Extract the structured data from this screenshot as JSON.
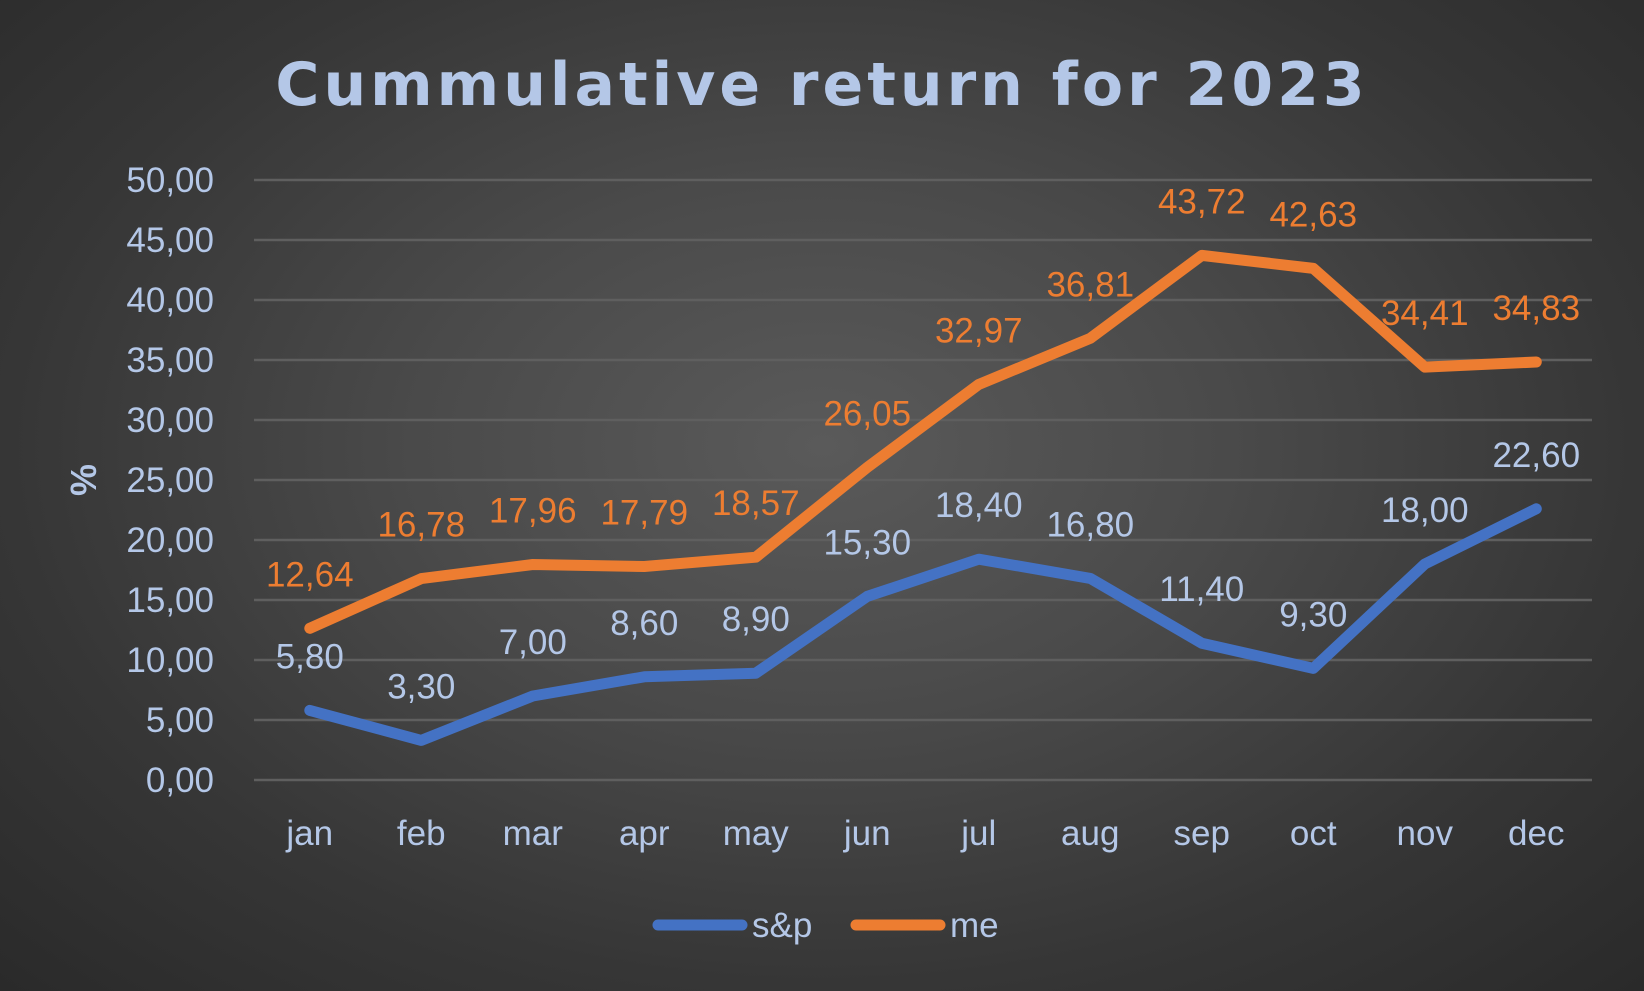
{
  "chart_data": {
    "type": "line",
    "title": "Cummulative return for 2023",
    "xlabel": "",
    "ylabel": "%",
    "categories": [
      "jan",
      "feb",
      "mar",
      "apr",
      "may",
      "jun",
      "jul",
      "aug",
      "sep",
      "oct",
      "nov",
      "dec"
    ],
    "ylim": [
      0,
      50
    ],
    "yticks": [
      "0,00",
      "5,00",
      "10,00",
      "15,00",
      "20,00",
      "25,00",
      "30,00",
      "35,00",
      "40,00",
      "45,00",
      "50,00"
    ],
    "grid": true,
    "legend_position": "bottom",
    "series": [
      {
        "name": "s&p",
        "color": "#4472c4",
        "label_color": "#b4c7e7",
        "values": [
          5.8,
          3.3,
          7.0,
          8.6,
          8.9,
          15.3,
          18.4,
          16.8,
          11.4,
          9.3,
          18.0,
          22.6
        ],
        "labels": [
          "5,80",
          "3,30",
          "7,00",
          "8,60",
          "8,90",
          "15,30",
          "18,40",
          "16,80",
          "11,40",
          "9,30",
          "18,00",
          "22,60"
        ]
      },
      {
        "name": "me",
        "color": "#ed7d31",
        "label_color": "#ed7d31",
        "values": [
          12.64,
          16.78,
          17.96,
          17.79,
          18.57,
          26.05,
          32.97,
          36.81,
          43.72,
          42.63,
          34.41,
          34.83
        ],
        "labels": [
          "12,64",
          "16,78",
          "17,96",
          "17,79",
          "18,57",
          "26,05",
          "32,97",
          "36,81",
          "43,72",
          "42,63",
          "34,41",
          "34,83"
        ]
      }
    ]
  },
  "colors": {
    "background": "#404040",
    "text": "#b4c7e7",
    "grid": "#5f5f5f"
  }
}
